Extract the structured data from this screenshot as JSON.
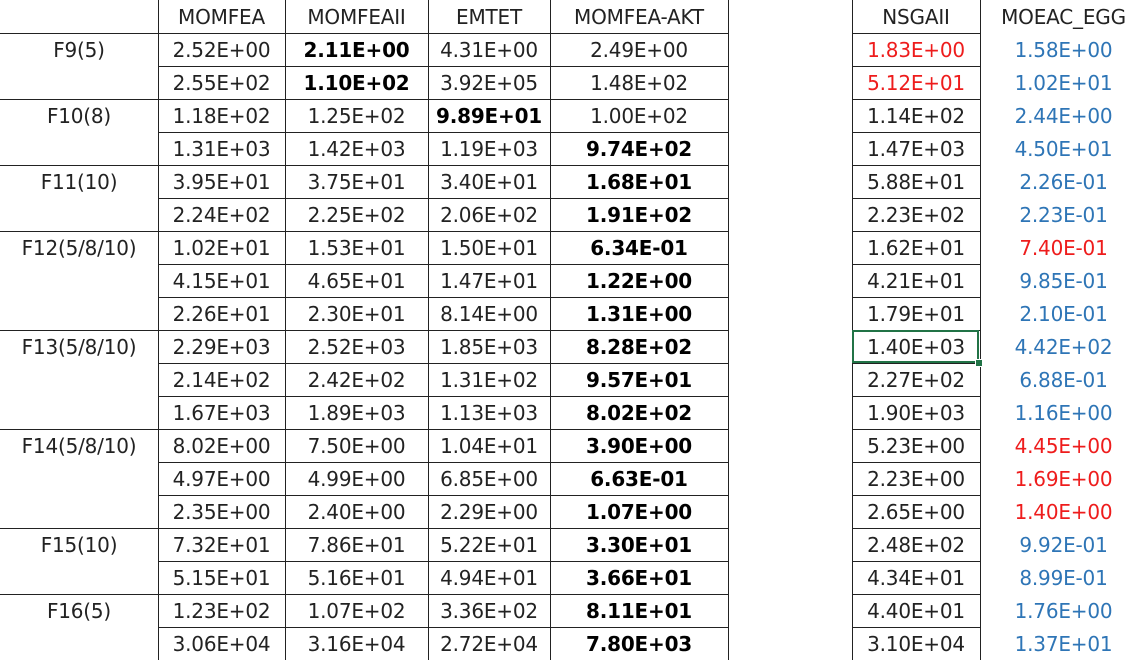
{
  "headers": [
    "",
    "MOMFEA",
    "MOMFEAII",
    "EMTET",
    "MOMFEA-AKT",
    "",
    "NSGAII",
    "MOEAC_EGG"
  ],
  "rows": [
    {
      "label": "F9(5)",
      "values": [
        "2.52E+00",
        "2.11E+00",
        "4.31E+00",
        "2.49E+00",
        "1.83E+00",
        "1.58E+00"
      ],
      "bold": [
        1
      ],
      "colors": [
        "",
        "",
        "",
        "",
        "red",
        "blue"
      ]
    },
    {
      "label": "",
      "values": [
        "2.55E+02",
        "1.10E+02",
        "3.92E+05",
        "1.48E+02",
        "5.12E+01",
        "1.02E+01"
      ],
      "bold": [
        1
      ],
      "colors": [
        "",
        "",
        "",
        "",
        "red",
        "blue"
      ]
    },
    {
      "label": "F10(8)",
      "values": [
        "1.18E+02",
        "1.25E+02",
        "9.89E+01",
        "1.00E+02",
        "1.14E+02",
        "2.44E+00"
      ],
      "bold": [
        2
      ],
      "colors": [
        "",
        "",
        "",
        "",
        "",
        "blue"
      ]
    },
    {
      "label": "",
      "values": [
        "1.31E+03",
        "1.42E+03",
        "1.19E+03",
        "9.74E+02",
        "1.47E+03",
        "4.50E+01"
      ],
      "bold": [
        3
      ],
      "colors": [
        "",
        "",
        "",
        "",
        "",
        "blue"
      ]
    },
    {
      "label": "F11(10)",
      "values": [
        "3.95E+01",
        "3.75E+01",
        "3.40E+01",
        "1.68E+01",
        "5.88E+01",
        "2.26E-01"
      ],
      "bold": [
        3
      ],
      "colors": [
        "",
        "",
        "",
        "",
        "",
        "blue"
      ]
    },
    {
      "label": "",
      "values": [
        "2.24E+02",
        "2.25E+02",
        "2.06E+02",
        "1.91E+02",
        "2.23E+02",
        "2.23E-01"
      ],
      "bold": [
        3
      ],
      "colors": [
        "",
        "",
        "",
        "",
        "",
        "blue"
      ]
    },
    {
      "label": "F12(5/8/10)",
      "values": [
        "1.02E+01",
        "1.53E+01",
        "1.50E+01",
        "6.34E-01",
        "1.62E+01",
        "7.40E-01"
      ],
      "bold": [
        3
      ],
      "colors": [
        "",
        "",
        "",
        "",
        "",
        "red"
      ]
    },
    {
      "label": "",
      "values": [
        "4.15E+01",
        "4.65E+01",
        "1.47E+01",
        "1.22E+00",
        "4.21E+01",
        "9.85E-01"
      ],
      "bold": [
        3
      ],
      "colors": [
        "",
        "",
        "",
        "",
        "",
        "blue"
      ]
    },
    {
      "label": "",
      "values": [
        "2.26E+01",
        "2.30E+01",
        "8.14E+00",
        "1.31E+00",
        "1.79E+01",
        "2.10E-01"
      ],
      "bold": [
        3
      ],
      "colors": [
        "",
        "",
        "",
        "",
        "",
        "blue"
      ]
    },
    {
      "label": "F13(5/8/10)",
      "values": [
        "2.29E+03",
        "2.52E+03",
        "1.85E+03",
        "8.28E+02",
        "1.40E+03",
        "4.42E+02"
      ],
      "bold": [
        3
      ],
      "colors": [
        "",
        "",
        "",
        "",
        "",
        "blue"
      ]
    },
    {
      "label": "",
      "values": [
        "2.14E+02",
        "2.42E+02",
        "1.31E+02",
        "9.57E+01",
        "2.27E+02",
        "6.88E-01"
      ],
      "bold": [
        3
      ],
      "colors": [
        "",
        "",
        "",
        "",
        "",
        "blue"
      ]
    },
    {
      "label": "",
      "values": [
        "1.67E+03",
        "1.89E+03",
        "1.13E+03",
        "8.02E+02",
        "1.90E+03",
        "1.16E+00"
      ],
      "bold": [
        3
      ],
      "colors": [
        "",
        "",
        "",
        "",
        "",
        "blue"
      ]
    },
    {
      "label": "F14(5/8/10)",
      "values": [
        "8.02E+00",
        "7.50E+00",
        "1.04E+01",
        "3.90E+00",
        "5.23E+00",
        "4.45E+00"
      ],
      "bold": [
        3
      ],
      "colors": [
        "",
        "",
        "",
        "",
        "",
        "red"
      ]
    },
    {
      "label": "",
      "values": [
        "4.97E+00",
        "4.99E+00",
        "6.85E+00",
        "6.63E-01",
        "2.23E+00",
        "1.69E+00"
      ],
      "bold": [
        3
      ],
      "colors": [
        "",
        "",
        "",
        "",
        "",
        "red"
      ]
    },
    {
      "label": "",
      "values": [
        "2.35E+00",
        "2.40E+00",
        "2.29E+00",
        "1.07E+00",
        "2.65E+00",
        "1.40E+00"
      ],
      "bold": [
        3
      ],
      "colors": [
        "",
        "",
        "",
        "",
        "",
        "red"
      ]
    },
    {
      "label": "F15(10)",
      "values": [
        "7.32E+01",
        "7.86E+01",
        "5.22E+01",
        "3.30E+01",
        "2.48E+02",
        "9.92E-01"
      ],
      "bold": [
        3
      ],
      "colors": [
        "",
        "",
        "",
        "",
        "",
        "blue"
      ]
    },
    {
      "label": "",
      "values": [
        "5.15E+01",
        "5.16E+01",
        "4.94E+01",
        "3.66E+01",
        "4.34E+01",
        "8.99E-01"
      ],
      "bold": [
        3
      ],
      "colors": [
        "",
        "",
        "",
        "",
        "",
        "blue"
      ]
    },
    {
      "label": "F16(5)",
      "values": [
        "1.23E+02",
        "1.07E+02",
        "3.36E+02",
        "8.11E+01",
        "4.40E+01",
        "1.76E+00"
      ],
      "bold": [
        3
      ],
      "colors": [
        "",
        "",
        "",
        "",
        "",
        "blue"
      ]
    },
    {
      "label": "",
      "values": [
        "3.06E+04",
        "3.16E+04",
        "2.72E+04",
        "7.80E+03",
        "3.10E+04",
        "1.37E+01"
      ],
      "bold": [
        3
      ],
      "colors": [
        "",
        "",
        "",
        "",
        "",
        "blue"
      ]
    }
  ]
}
